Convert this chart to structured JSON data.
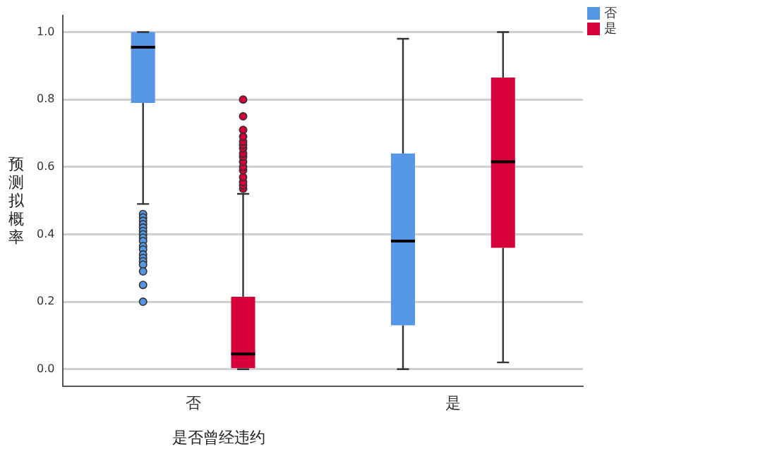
{
  "chart_data": {
    "type": "box",
    "xlabel": "是否曾经违约",
    "ylabel": "预测拟概率",
    "categories": [
      "否",
      "是"
    ],
    "ylim": [
      -0.05,
      1.05
    ],
    "yticks": [
      {
        "value": 0,
        "label": "0.0"
      },
      {
        "value": 0.2,
        "label": "0.2"
      },
      {
        "value": 0.4,
        "label": "0.4"
      },
      {
        "value": 0.6,
        "label": "0.6"
      },
      {
        "value": 0.8,
        "label": "0.8"
      },
      {
        "value": 1,
        "label": "1.0"
      }
    ],
    "grid": "y",
    "legend": "top right",
    "series": [
      {
        "name": "否",
        "color": "#5596e6",
        "boxes": [
          {
            "low": 0.49,
            "q1": 0.79,
            "median": 0.955,
            "q3": 1.0,
            "high": 1.0,
            "outliers": [
              0.46,
              0.45,
              0.44,
              0.43,
              0.42,
              0.41,
              0.4,
              0.39,
              0.38,
              0.365,
              0.355,
              0.34,
              0.33,
              0.32,
              0.31,
              0.29,
              0.25,
              0.2
            ]
          },
          {
            "low": 0.0,
            "q1": 0.13,
            "median": 0.38,
            "q3": 0.64,
            "high": 0.98
          }
        ]
      },
      {
        "name": "是",
        "color": "#d5003a",
        "boxes": [
          {
            "low": 0.0,
            "q1": 0.0,
            "median": 0.045,
            "q3": 0.215,
            "high": 0.52,
            "outliers": [
              0.535,
              0.545,
              0.555,
              0.57,
              0.59,
              0.6,
              0.615,
              0.63,
              0.64,
              0.655,
              0.665,
              0.675,
              0.69,
              0.71,
              0.75,
              0.8
            ]
          },
          {
            "low": 0.02,
            "q1": 0.36,
            "median": 0.615,
            "q3": 0.865,
            "high": 1.0
          }
        ]
      }
    ]
  }
}
